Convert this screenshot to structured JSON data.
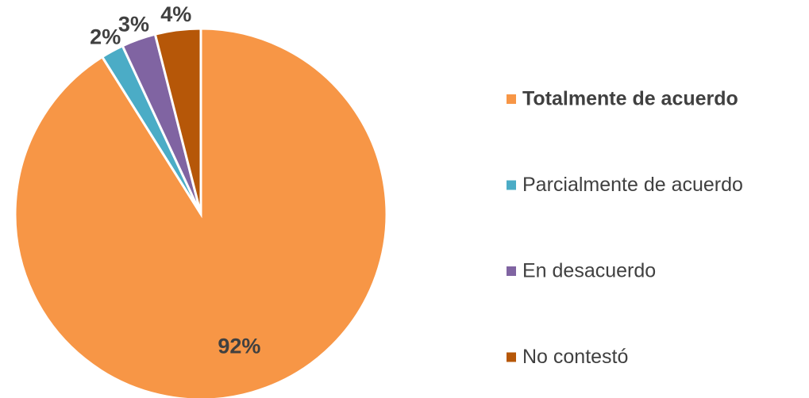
{
  "chart_data": {
    "type": "pie",
    "categories": [
      "Totalmente de acuerdo",
      "Parcialmente de acuerdo",
      "En desacuerdo",
      "No contestó"
    ],
    "values": [
      92,
      2,
      3,
      4
    ],
    "value_labels": [
      "92%",
      "2%",
      "3%",
      "4%"
    ],
    "colors": [
      "#f79646",
      "#4bacc6",
      "#8064a2",
      "#b65708"
    ],
    "legend": "right"
  }
}
